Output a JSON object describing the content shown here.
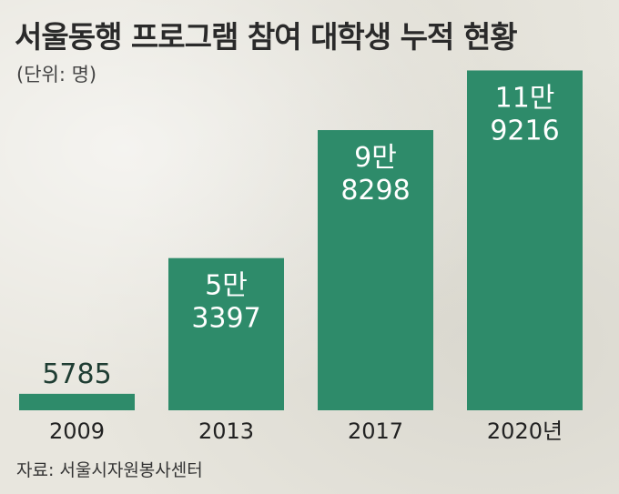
{
  "title": "서울동행 프로그램 참여 대학생 누적 현황",
  "unit": "(단위: 명)",
  "source": "자료: 서울시자원봉사센터",
  "colors": {
    "bar": "#2e8b6a",
    "background": "#e8e6de"
  },
  "chart_data": {
    "type": "bar",
    "title": "서울동행 프로그램 참여 대학생 누적 현황",
    "categories": [
      "2009",
      "2013",
      "2017",
      "2020년"
    ],
    "values": [
      5785,
      53397,
      98298,
      119216
    ],
    "labels": [
      [
        "5785"
      ],
      [
        "5만",
        "3397"
      ],
      [
        "9만",
        "8298"
      ],
      [
        "11만",
        "9216"
      ]
    ],
    "ylabel": "",
    "xlabel": "",
    "ylim": [
      0,
      120000
    ],
    "grid": false,
    "legend": "none"
  }
}
